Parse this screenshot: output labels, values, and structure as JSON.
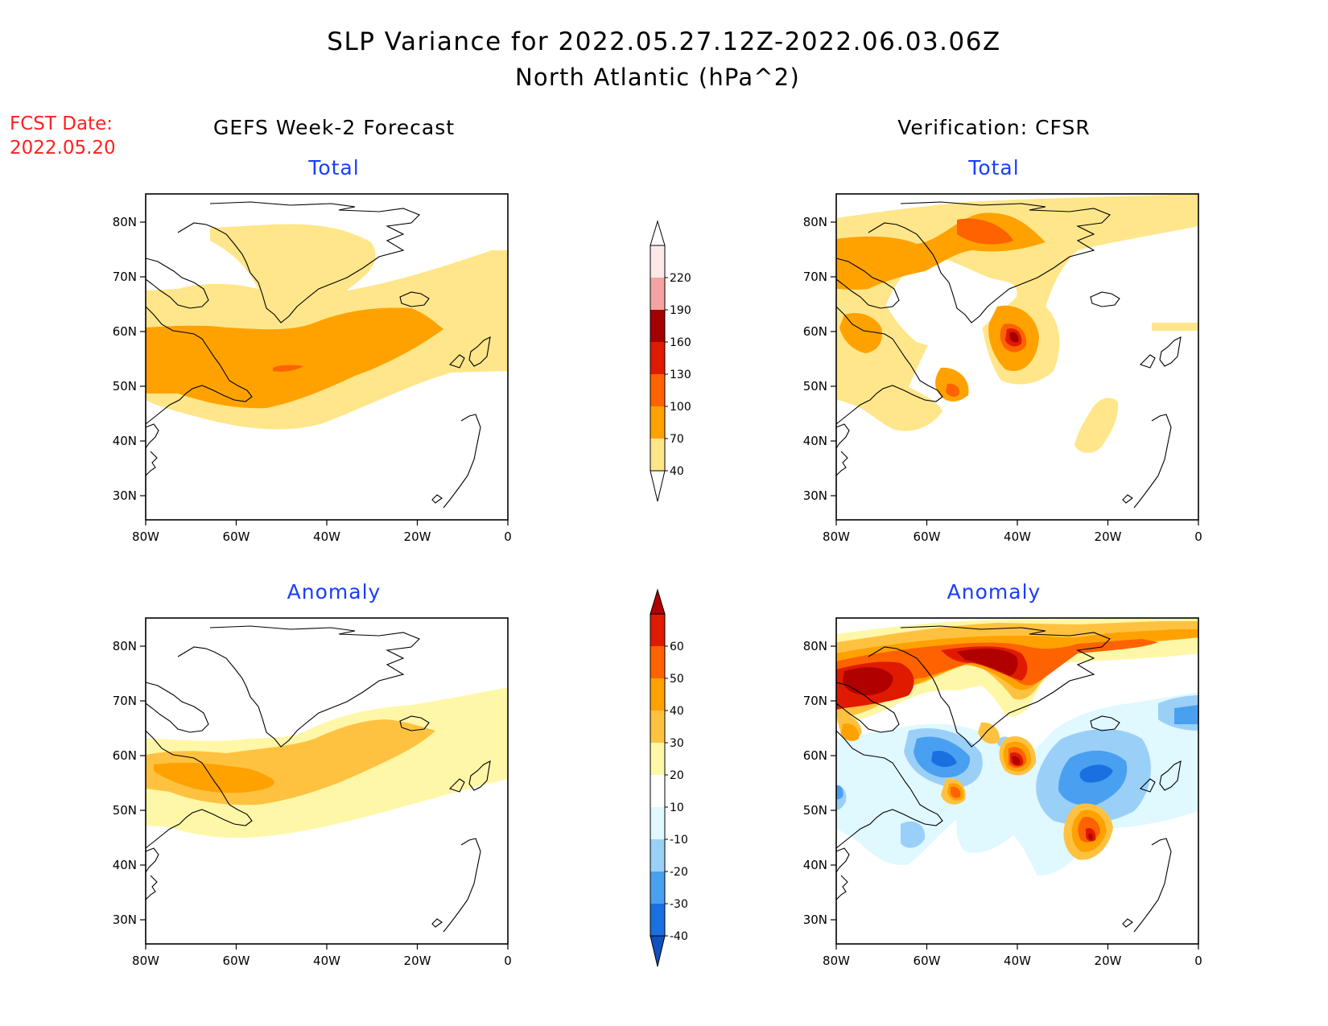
{
  "title": {
    "line1": "SLP Variance for 2022.05.27.12Z-2022.06.03.06Z",
    "line2": "North Atlantic (hPa^2)"
  },
  "fcst": {
    "line1": "FCST Date:",
    "line2": "2022.05.20",
    "color": "#ff2020"
  },
  "columns": {
    "left": "GEFS Week-2 Forecast",
    "right": "Verification: CFSR"
  },
  "panel_titles": {
    "total": "Total",
    "anomaly": "Anomaly"
  },
  "axes": {
    "lon_labels": [
      "80W",
      "60W",
      "40W",
      "20W",
      "0"
    ],
    "lat_labels": [
      "80N",
      "70N",
      "60N",
      "50N",
      "40N",
      "30N"
    ]
  },
  "colorbars": {
    "total": {
      "labels": [
        "220",
        "190",
        "160",
        "130",
        "100",
        "70",
        "40"
      ],
      "colors": [
        "#fde8e8",
        "#f4a3a3",
        "#a30000",
        "#e01a00",
        "#ff6200",
        "#ffa200",
        "#ffe68a"
      ]
    },
    "anomaly": {
      "labels": [
        "60",
        "50",
        "40",
        "30",
        "20",
        "10",
        "-10",
        "-20",
        "-30",
        "-40"
      ],
      "colors": [
        "#b00000",
        "#e01a00",
        "#ff6200",
        "#ffa200",
        "#ffc240",
        "#fff7a8",
        "#ffffff",
        "#e0f8ff",
        "#9ad0f8",
        "#4aa0f0",
        "#1a70e0",
        "#1050c0"
      ]
    }
  },
  "colors": {
    "title_text": "#000000",
    "panel_title": "#1a3cff",
    "y40": "#ffe68a",
    "o70": "#ffa200",
    "o100": "#ff6200",
    "r130": "#e01a00",
    "dr160": "#a30000",
    "a10": "#fff7a8",
    "a20": "#ffc240",
    "a30": "#ffa200",
    "a40": "#ff6200",
    "a50": "#e01a00",
    "a60": "#b00000",
    "b10": "#e0f8ff",
    "b20": "#9ad0f8",
    "b30": "#4aa0f0",
    "b40": "#1a70e0"
  }
}
